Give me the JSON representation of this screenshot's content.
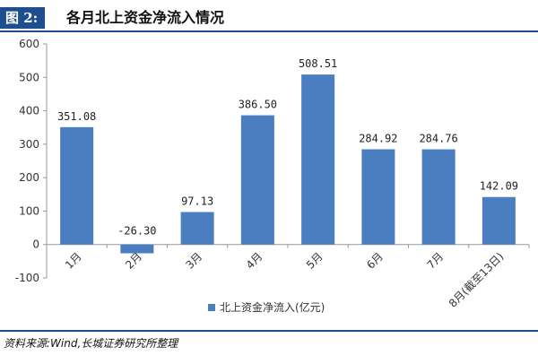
{
  "header": {
    "tag": "图 2:",
    "title": "各月北上资金净流入情况"
  },
  "footer": {
    "source": "资料来源:Wind,长城证券研究所整理"
  },
  "colors": {
    "bar": "#4a7ec0",
    "accent": "#1f4e8f",
    "axis": "#999999"
  },
  "chart_data": {
    "type": "bar",
    "title": "",
    "xlabel": "",
    "ylabel": "",
    "categories": [
      "1月",
      "2月",
      "3月",
      "4月",
      "5月",
      "6月",
      "7月",
      "8月(截至13日)"
    ],
    "series": [
      {
        "name": "北上资金净流入(亿元)",
        "values": [
          351.08,
          -26.3,
          97.13,
          386.5,
          508.51,
          284.92,
          284.76,
          142.09
        ],
        "labels": [
          "351.08",
          "-26.30",
          "97.13",
          "386.50",
          "508.51",
          "284.92",
          "284.76",
          "142.09"
        ]
      }
    ],
    "ylim": [
      -100,
      600
    ],
    "yticks": [
      "-100",
      "0",
      "100",
      "200",
      "300",
      "400",
      "500",
      "600"
    ],
    "grid": false,
    "legend": "bottom-center"
  }
}
